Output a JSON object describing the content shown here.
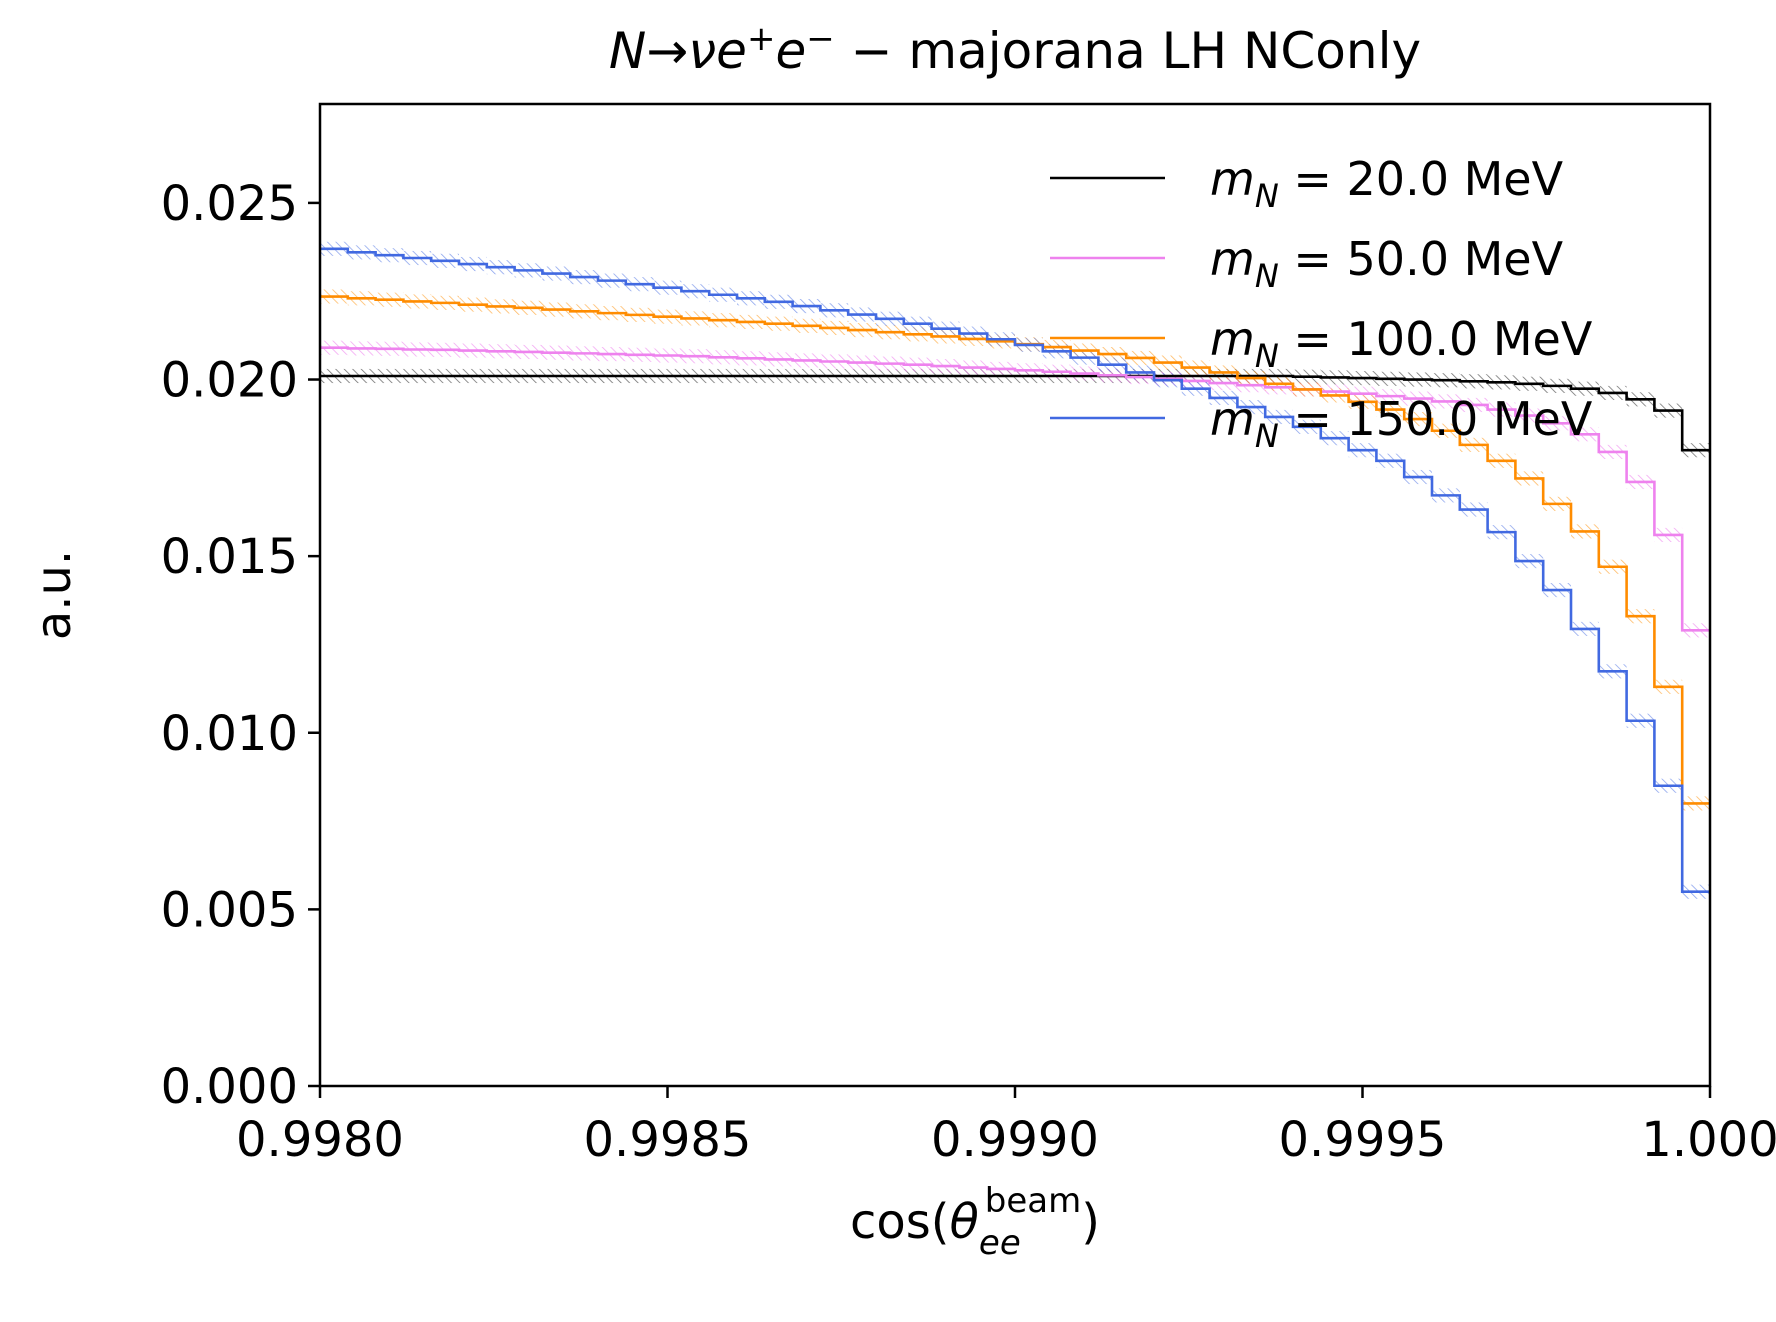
{
  "chart_data": {
    "type": "line",
    "title": "N→νe⁺e⁻ − majorana LH NConly",
    "xlabel": "cos(θ_ee^beam)",
    "ylabel": "a.u.",
    "xlim": [
      0.998,
      1.0
    ],
    "ylim": [
      0.0,
      0.0278
    ],
    "x_ticks": [
      0.998,
      0.9985,
      0.999,
      0.9995,
      1.0
    ],
    "x_tick_labels": [
      "0.9980",
      "0.9985",
      "0.9990",
      "0.9995",
      "1.000"
    ],
    "y_ticks": [
      0.0,
      0.005,
      0.01,
      0.015,
      0.02,
      0.025
    ],
    "y_tick_labels": [
      "0.000",
      "0.005",
      "0.010",
      "0.015",
      "0.020",
      "0.025"
    ],
    "grid": false,
    "legend_position": "top-right",
    "histogram_style": "step",
    "bin_edges_range": [
      0.998,
      1.0
    ],
    "n_bins": 50,
    "uncertainty": "hatched band around each step line",
    "series": [
      {
        "name": "m_N = 20.0 MeV",
        "color": "#000000",
        "values": [
          0.0201,
          0.0201,
          0.0201,
          0.0201,
          0.0201,
          0.0201,
          0.0201,
          0.0201,
          0.0201,
          0.0201,
          0.0201,
          0.0201,
          0.0201,
          0.0201,
          0.0201,
          0.0201,
          0.0201,
          0.0201,
          0.0201,
          0.0201,
          0.0201,
          0.0201,
          0.0201,
          0.0201,
          0.0201,
          0.0201,
          0.0201,
          0.0201,
          0.0201,
          0.0201,
          0.0201,
          0.0201,
          0.0201,
          0.0201,
          0.0201,
          0.02008,
          0.02006,
          0.02004,
          0.02002,
          0.02,
          0.01998,
          0.01995,
          0.01992,
          0.01988,
          0.01982,
          0.01974,
          0.01962,
          0.01944,
          0.01912,
          0.018
        ],
        "error": 0.0002
      },
      {
        "name": "m_N = 50.0 MeV",
        "color": "#ee82ee",
        "values": [
          0.0209,
          0.02088,
          0.02087,
          0.02085,
          0.02084,
          0.02082,
          0.0208,
          0.02078,
          0.02076,
          0.02074,
          0.02072,
          0.0207,
          0.02068,
          0.02066,
          0.02063,
          0.0206,
          0.02057,
          0.02054,
          0.02051,
          0.02048,
          0.02045,
          0.02042,
          0.02038,
          0.02034,
          0.0203,
          0.02026,
          0.02022,
          0.02017,
          0.02012,
          0.02007,
          0.02002,
          0.01996,
          0.0199,
          0.01984,
          0.01978,
          0.01972,
          0.01966,
          0.0196,
          0.01953,
          0.01946,
          0.01938,
          0.01928,
          0.01915,
          0.01898,
          0.01876,
          0.01845,
          0.01795,
          0.0171,
          0.0156,
          0.0129
        ],
        "error": 0.0002
      },
      {
        "name": "m_N = 100.0 MeV",
        "color": "#ff8c00",
        "values": [
          0.02235,
          0.0223,
          0.02226,
          0.02221,
          0.02217,
          0.02212,
          0.02207,
          0.02203,
          0.02198,
          0.02193,
          0.02188,
          0.02183,
          0.02178,
          0.02173,
          0.02168,
          0.02163,
          0.02158,
          0.02152,
          0.02146,
          0.0214,
          0.02134,
          0.02128,
          0.02122,
          0.02115,
          0.02108,
          0.021,
          0.02092,
          0.02082,
          0.02072,
          0.02061,
          0.02048,
          0.02034,
          0.0202,
          0.02004,
          0.01988,
          0.01972,
          0.01955,
          0.01937,
          0.01915,
          0.01888,
          0.01855,
          0.01815,
          0.0177,
          0.0172,
          0.01648,
          0.0157,
          0.0147,
          0.0133,
          0.0113,
          0.008
        ],
        "error": 0.0002
      },
      {
        "name": "m_N = 150.0 MeV",
        "color": "#4169e1",
        "values": [
          0.0237,
          0.0236,
          0.02352,
          0.02344,
          0.02336,
          0.02327,
          0.02318,
          0.02309,
          0.023,
          0.0229,
          0.0228,
          0.0227,
          0.0226,
          0.0225,
          0.0224,
          0.0223,
          0.0222,
          0.02208,
          0.02196,
          0.02184,
          0.02172,
          0.02158,
          0.02144,
          0.0213,
          0.02114,
          0.02098,
          0.0208,
          0.02062,
          0.02042,
          0.0202,
          0.01998,
          0.01974,
          0.01948,
          0.01922,
          0.01894,
          0.01866,
          0.01834,
          0.018,
          0.0177,
          0.01724,
          0.01672,
          0.01632,
          0.01568,
          0.01486,
          0.01404,
          0.01294,
          0.01174,
          0.01034,
          0.0085,
          0.0055
        ],
        "error": 0.0002
      }
    ]
  }
}
